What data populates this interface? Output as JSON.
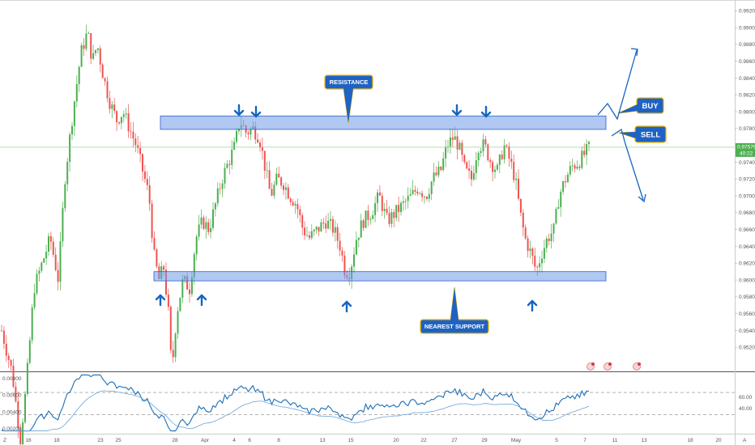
{
  "chart_data": {
    "type": "candlestick",
    "instrument_axis": {
      "y_ticks": [
        "0.99200",
        "0.99000",
        "0.98800",
        "0.98600",
        "0.98400",
        "0.98200",
        "0.98000",
        "0.97800",
        "0.97600",
        "0.97400",
        "0.97200",
        "0.97000",
        "0.96800",
        "0.96600",
        "0.96400",
        "0.96200",
        "0.96000",
        "0.95800",
        "0.95600",
        "0.95400",
        "0.95200"
      ],
      "ylim": [
        0.9502,
        0.9928
      ],
      "last_price": "0.97579",
      "countdown": "40:22"
    },
    "x_ticks": [
      "16",
      "18",
      "23",
      "25",
      "28",
      "Apr",
      "4",
      "6",
      "8",
      "13",
      "15",
      "20",
      "22",
      "27",
      "29",
      "May",
      "5",
      "7",
      "11",
      "13",
      "18",
      "20"
    ],
    "x_corner_left": "Z",
    "x_corner_right": "A",
    "zones": [
      {
        "name": "resistance",
        "low": 0.9779,
        "high": 0.9795
      },
      {
        "name": "support",
        "low": 0.9599,
        "high": 0.961
      }
    ],
    "callouts": {
      "resistance": "RESISTANCE",
      "support": "NEAREST SUPPORT",
      "buy": "BUY",
      "sell": "SELL"
    },
    "oscillator": {
      "left_ticks": [
        "0.00800",
        "0.00600",
        "0.00400",
        "0.00200"
      ],
      "right_ticks": [
        "60.00",
        "40.00"
      ],
      "upper_level": 68,
      "lower_level": 30
    },
    "colors": {
      "up": "#4caf50",
      "down": "#ef5350",
      "zone_fill": "#6f9be8",
      "zone_stroke": "#2d62c9",
      "arrow": "#1565c0",
      "callout": "#1e63c4",
      "callout_border": "#f0b400",
      "price_line": "#89c98c",
      "price_label": "#4caf50",
      "osc_line": "#1b6fb7"
    }
  }
}
